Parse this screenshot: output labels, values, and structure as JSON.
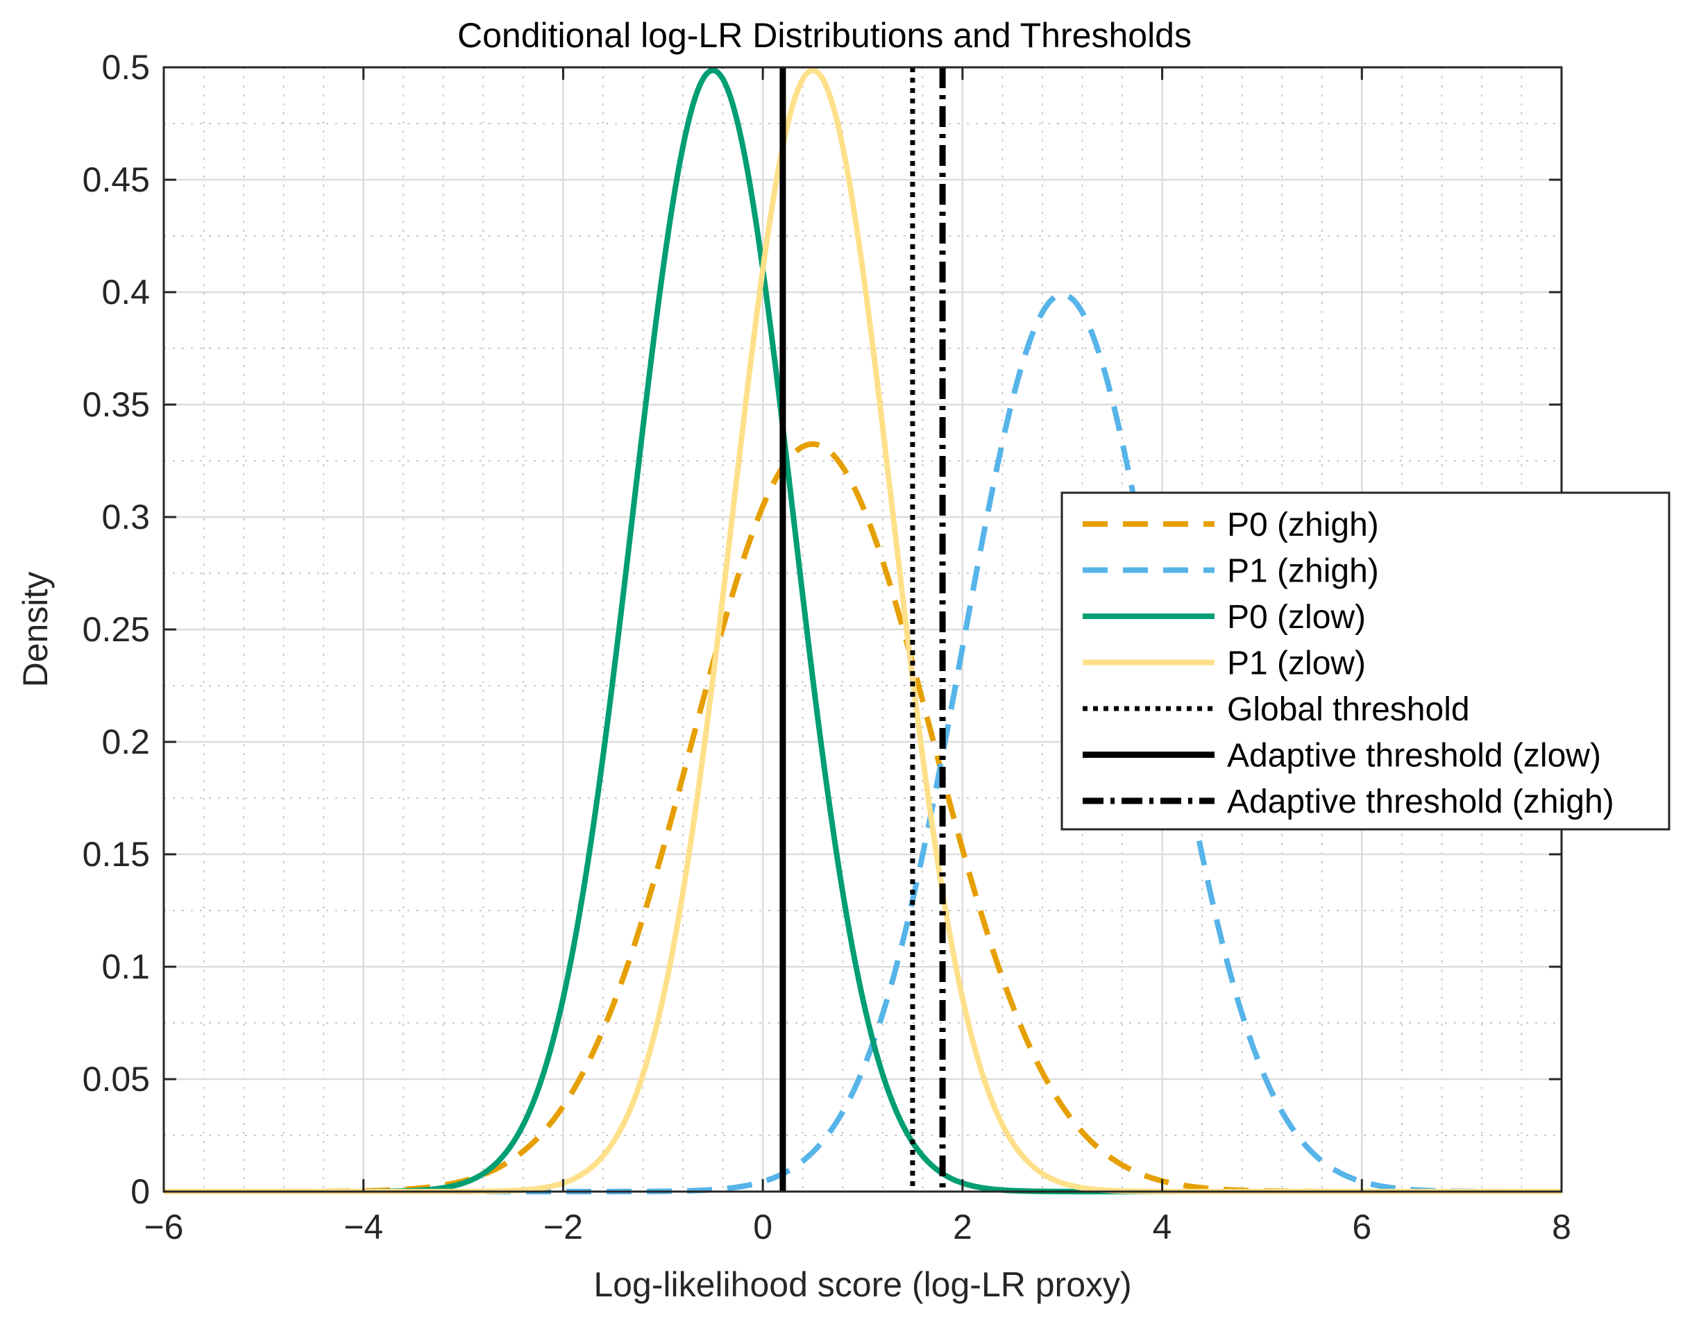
{
  "chart_data": {
    "type": "line",
    "title": "Conditional log-LR Distributions and Thresholds",
    "xlabel": "Log-likelihood score (log-LR proxy)",
    "ylabel": "Density",
    "xlim": [
      -6,
      8
    ],
    "ylim": [
      0,
      0.5
    ],
    "xticks": [
      -6,
      -4,
      -2,
      0,
      2,
      4,
      6,
      8
    ],
    "xtick_labels": [
      "−6",
      "−4",
      "−2",
      "0",
      "2",
      "4",
      "6",
      "8"
    ],
    "yticks": [
      0,
      0.05,
      0.1,
      0.15,
      0.2,
      0.25,
      0.3,
      0.35,
      0.4,
      0.45,
      0.5
    ],
    "ytick_labels": [
      "0",
      "0.05",
      "0.1",
      "0.15",
      "0.2",
      "0.25",
      "0.3",
      "0.35",
      "0.4",
      "0.45",
      "0.5"
    ],
    "grid": true,
    "minor_grid": true,
    "legend_position": "right",
    "series": [
      {
        "name": "P0 (zhigh)",
        "kind": "gaussian",
        "mean": 0.5,
        "sd": 1.2,
        "color": "#E69F00",
        "style": "dashed"
      },
      {
        "name": "P1 (zhigh)",
        "kind": "gaussian",
        "mean": 3.0,
        "sd": 1.0,
        "color": "#56B4E9",
        "style": "dashed"
      },
      {
        "name": "P0 (zlow)",
        "kind": "gaussian",
        "mean": -0.5,
        "sd": 0.8,
        "color": "#009E73",
        "style": "solid"
      },
      {
        "name": "P1 (zlow)",
        "kind": "gaussian",
        "mean": 0.5,
        "sd": 0.8,
        "color": "#FFE08A",
        "style": "solid"
      }
    ],
    "thresholds": [
      {
        "name": "Global threshold",
        "x": 1.5,
        "color": "#000000",
        "style": "dotted"
      },
      {
        "name": "Adaptive threshold (zlow)",
        "x": 0.2,
        "color": "#000000",
        "style": "solid"
      },
      {
        "name": "Adaptive threshold (zhigh)",
        "x": 1.8,
        "color": "#000000",
        "style": "dashdot"
      }
    ]
  }
}
